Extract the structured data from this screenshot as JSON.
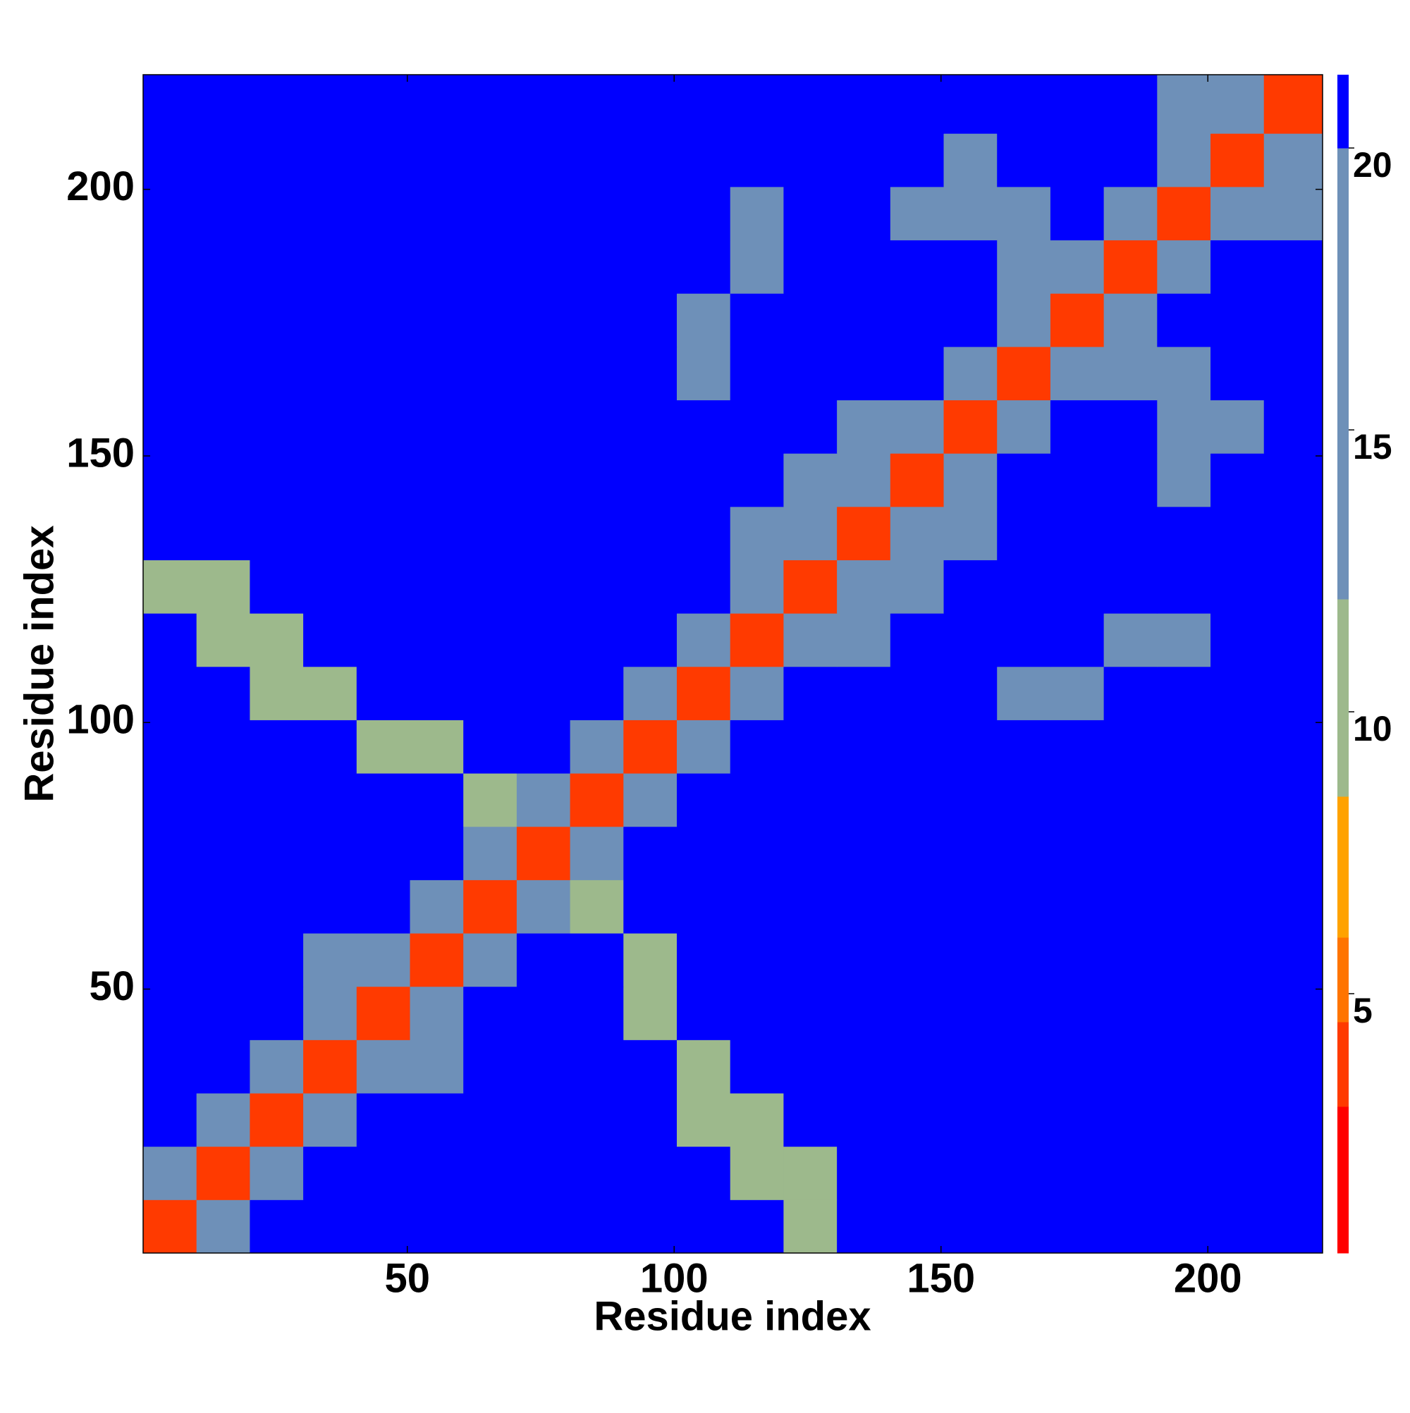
{
  "chart_data": {
    "type": "heatmap",
    "xlabel": "Residue index",
    "ylabel": "Residue index",
    "xbins": [
      0.5,
      10.5,
      20.5,
      30.5,
      40.5,
      50.5,
      60.5,
      70.5,
      80.5,
      90.5,
      100.5,
      110.5,
      120.5,
      130.5,
      140.5,
      150.5,
      160.5,
      170.5,
      180.5,
      190.5,
      200.5,
      210.5,
      221.5
    ],
    "ybins": [
      0.5,
      10.5,
      20.5,
      30.5,
      40.5,
      50.5,
      60.5,
      70.5,
      80.5,
      90.5,
      100.5,
      110.5,
      120.5,
      130.5,
      140.5,
      150.5,
      160.5,
      170.5,
      180.5,
      190.5,
      200.5,
      210.5,
      221.5
    ],
    "xlim": [
      0.5,
      221.5
    ],
    "ylim": [
      0.5,
      221.5
    ],
    "xticks": [
      50,
      100,
      150,
      200
    ],
    "yticks": [
      50,
      100,
      150,
      200
    ],
    "z": [
      [
        4,
        13,
        21,
        21,
        21,
        21,
        21,
        21,
        21,
        21,
        21,
        21,
        12,
        21,
        21,
        21,
        21,
        21,
        21,
        21,
        21,
        21
      ],
      [
        13,
        4,
        13,
        21,
        21,
        21,
        21,
        21,
        21,
        21,
        21,
        12,
        12,
        21,
        21,
        21,
        21,
        21,
        21,
        21,
        21,
        21
      ],
      [
        21,
        13,
        4,
        13,
        21,
        21,
        21,
        21,
        21,
        21,
        12,
        12,
        21,
        21,
        21,
        21,
        21,
        21,
        21,
        21,
        21,
        21
      ],
      [
        21,
        21,
        13,
        4,
        13,
        17,
        21,
        21,
        21,
        21,
        12,
        21,
        21,
        21,
        21,
        21,
        21,
        21,
        21,
        21,
        21,
        21
      ],
      [
        21,
        21,
        21,
        13,
        4,
        13,
        21,
        21,
        21,
        12,
        21,
        21,
        21,
        21,
        21,
        21,
        21,
        21,
        21,
        21,
        21,
        21
      ],
      [
        21,
        21,
        21,
        17,
        13,
        4,
        13,
        21,
        21,
        12,
        21,
        21,
        21,
        21,
        21,
        21,
        21,
        21,
        21,
        21,
        21,
        21
      ],
      [
        21,
        21,
        21,
        21,
        21,
        13,
        4,
        13,
        12,
        21,
        21,
        21,
        21,
        21,
        21,
        21,
        21,
        21,
        21,
        21,
        21,
        21
      ],
      [
        21,
        21,
        21,
        21,
        21,
        21,
        13,
        4,
        13,
        21,
        21,
        21,
        21,
        21,
        21,
        21,
        21,
        21,
        21,
        21,
        21,
        21
      ],
      [
        21,
        21,
        21,
        21,
        21,
        21,
        12,
        13,
        4,
        13,
        21,
        21,
        21,
        21,
        21,
        21,
        21,
        21,
        21,
        21,
        21,
        21
      ],
      [
        21,
        21,
        21,
        21,
        12,
        12,
        21,
        21,
        13,
        4,
        13,
        21,
        21,
        21,
        21,
        21,
        21,
        21,
        21,
        21,
        21,
        21
      ],
      [
        21,
        21,
        12,
        12,
        21,
        21,
        21,
        21,
        21,
        13,
        4,
        13,
        21,
        21,
        21,
        21,
        19,
        19,
        21,
        21,
        21,
        21
      ],
      [
        21,
        12,
        12,
        21,
        21,
        21,
        21,
        21,
        21,
        21,
        13,
        4,
        13,
        17,
        21,
        21,
        21,
        21,
        19,
        19,
        21,
        21
      ],
      [
        12,
        12,
        21,
        21,
        21,
        21,
        21,
        21,
        21,
        21,
        21,
        13,
        4,
        13,
        17,
        21,
        21,
        21,
        21,
        21,
        21,
        21
      ],
      [
        21,
        21,
        21,
        21,
        21,
        21,
        21,
        21,
        21,
        21,
        21,
        17,
        13,
        4,
        13,
        17,
        21,
        21,
        21,
        21,
        21,
        21
      ],
      [
        21,
        21,
        21,
        21,
        21,
        21,
        21,
        21,
        21,
        21,
        21,
        21,
        17,
        13,
        4,
        13,
        21,
        21,
        21,
        15,
        21,
        21
      ],
      [
        21,
        21,
        21,
        21,
        21,
        21,
        21,
        21,
        21,
        21,
        21,
        21,
        21,
        17,
        13,
        4,
        13,
        21,
        21,
        15,
        15,
        21
      ],
      [
        21,
        21,
        21,
        21,
        21,
        21,
        21,
        21,
        21,
        21,
        19,
        21,
        21,
        21,
        21,
        13,
        4,
        13,
        15,
        15,
        21,
        21
      ],
      [
        21,
        21,
        21,
        21,
        21,
        21,
        21,
        21,
        21,
        21,
        19,
        21,
        21,
        21,
        21,
        21,
        13,
        4,
        13,
        21,
        21,
        21
      ],
      [
        21,
        21,
        21,
        21,
        21,
        21,
        21,
        21,
        21,
        21,
        21,
        19,
        21,
        21,
        21,
        21,
        15,
        13,
        4,
        13,
        21,
        21
      ],
      [
        21,
        21,
        21,
        21,
        21,
        21,
        21,
        21,
        21,
        21,
        21,
        19,
        21,
        21,
        15,
        15,
        15,
        21,
        13,
        4,
        13,
        19
      ],
      [
        21,
        21,
        21,
        21,
        21,
        21,
        21,
        21,
        21,
        21,
        21,
        21,
        21,
        21,
        21,
        15,
        21,
        21,
        21,
        13,
        4,
        13
      ],
      [
        21,
        21,
        21,
        21,
        21,
        21,
        21,
        21,
        21,
        21,
        21,
        21,
        21,
        21,
        21,
        21,
        21,
        21,
        21,
        19,
        13,
        4
      ]
    ],
    "color_levels": [
      0.4,
      3,
      4.5,
      6,
      8.5,
      12,
      20,
      21.3
    ],
    "colors": [
      "#ff0000",
      "#ff3a00",
      "#ff7400",
      "#ffa200",
      "#9db98c",
      "#6e90b8",
      "#0000ff"
    ],
    "zlim": [
      0.4,
      21.3
    ],
    "zticks": [
      5,
      10,
      15,
      20
    ]
  }
}
